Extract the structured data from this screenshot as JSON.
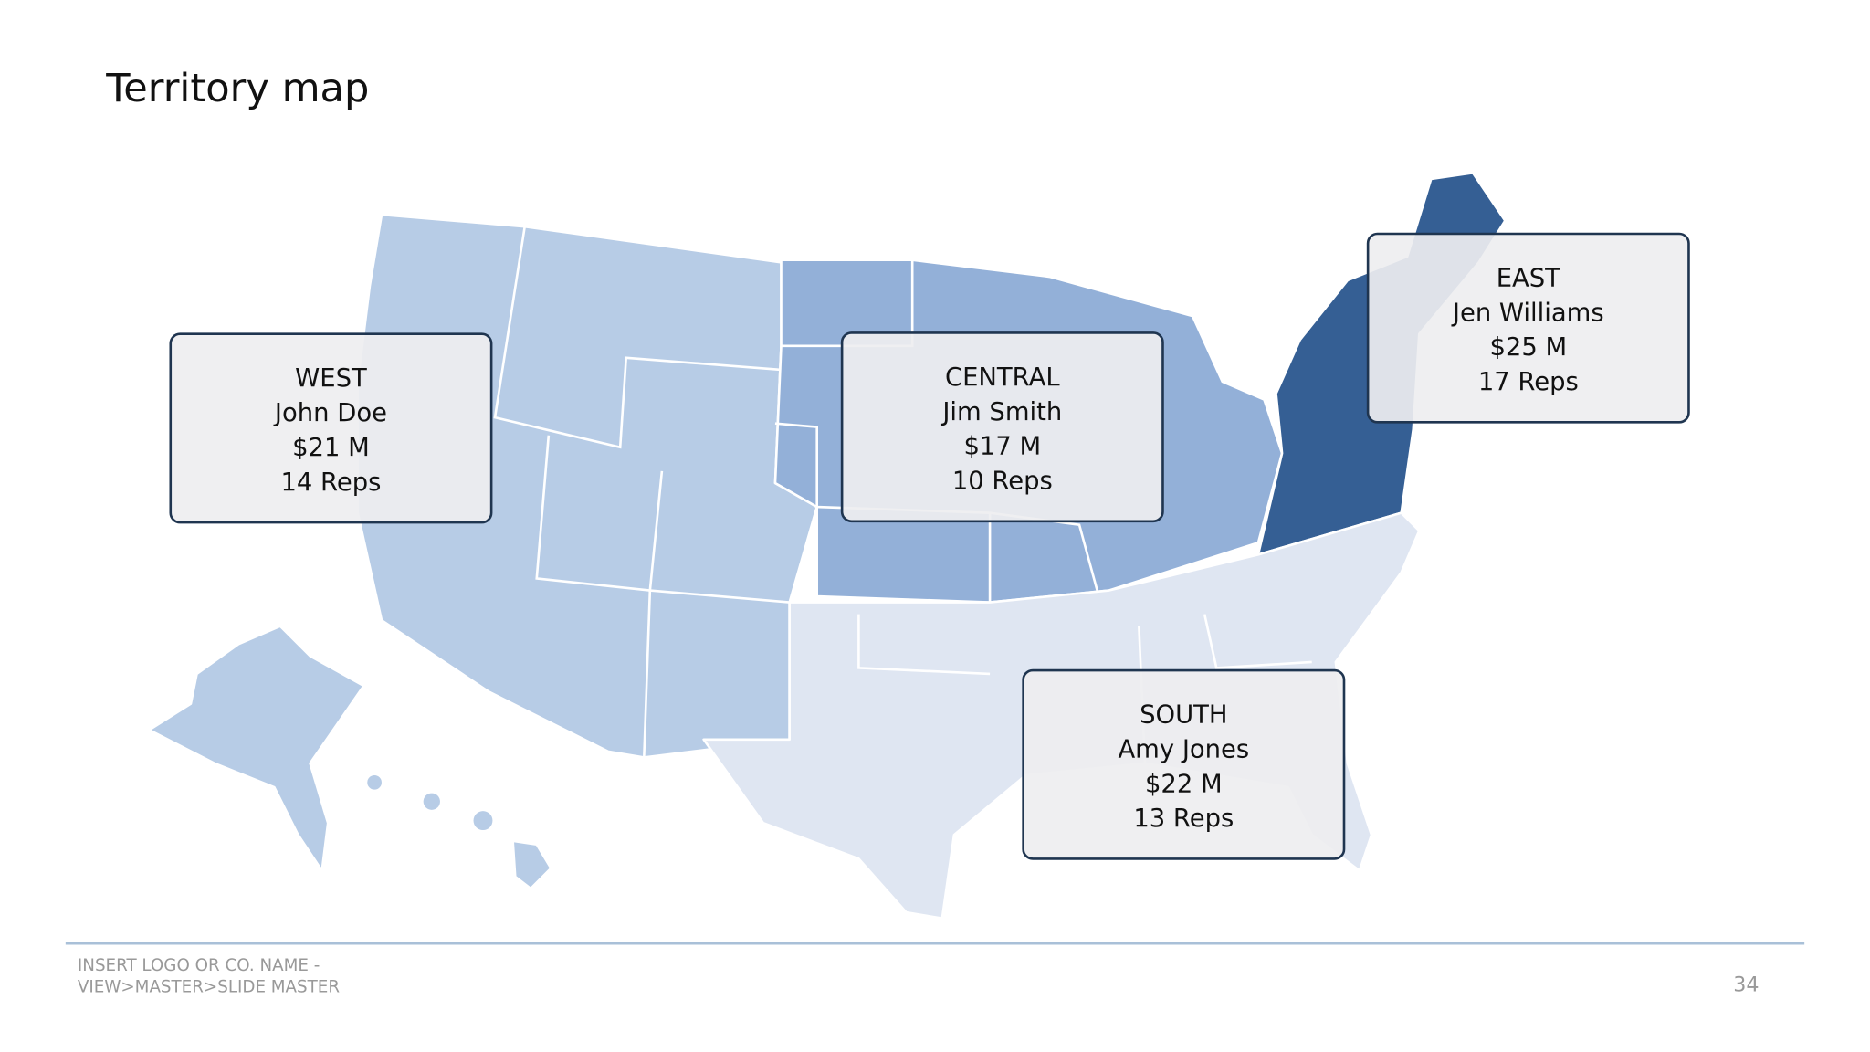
{
  "title": "Territory map",
  "regions": [
    {
      "name": "WEST",
      "manager": "John Doe",
      "revenue": "$21 M",
      "reps": "14 Reps"
    },
    {
      "name": "CENTRAL",
      "manager": "Jim Smith",
      "revenue": "$17 M",
      "reps": "10 Reps"
    },
    {
      "name": "EAST",
      "manager": "Jen Williams",
      "revenue": "$25 M",
      "reps": "17 Reps"
    },
    {
      "name": "SOUTH",
      "manager": "Amy Jones",
      "revenue": "$22 M",
      "reps": "13 Reps"
    }
  ],
  "footer": {
    "lines": [
      "INSERT LOGO OR CO. NAME -",
      "VIEW>MASTER>SLIDE MASTER"
    ],
    "page_number": "34"
  }
}
